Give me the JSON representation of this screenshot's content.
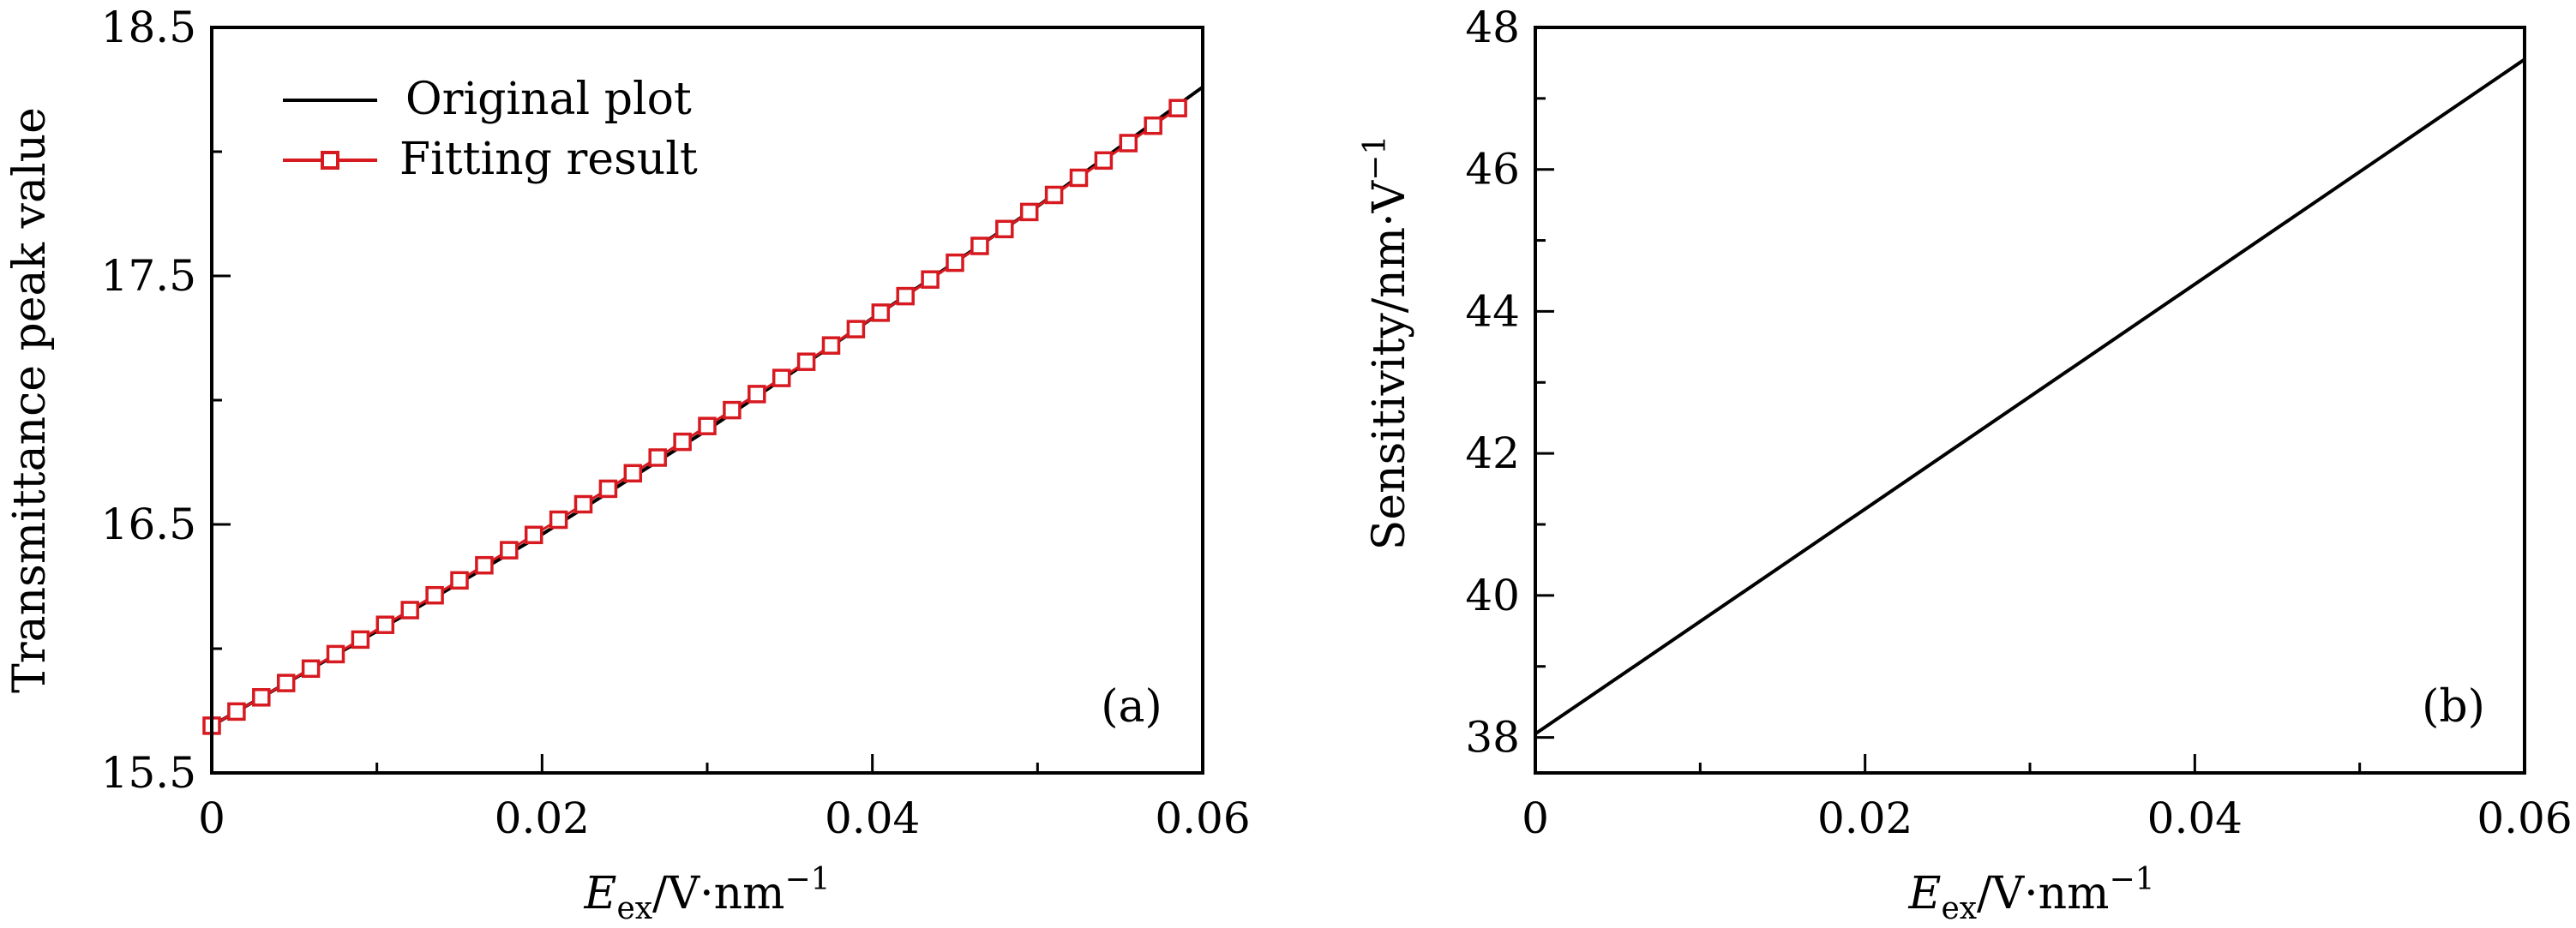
{
  "chart_data": [
    {
      "panel": "(a)",
      "type": "line",
      "title": "",
      "xlabel": "E_ex/V·nm^−1",
      "xlabel_main": "E",
      "xlabel_sub": "ex",
      "xlabel_unit": "/V·nm",
      "xlabel_sup": "−1",
      "ylabel": "Transmittance peak value",
      "xlim": [
        0,
        0.06
      ],
      "ylim": [
        15.5,
        18.5
      ],
      "xticks": [
        0,
        0.02,
        0.04,
        0.06
      ],
      "xtick_labels": [
        "0",
        "0.02",
        "0.04",
        "0.06"
      ],
      "yticks": [
        15.5,
        16.5,
        17.5,
        18.5
      ],
      "ytick_labels": [
        "15.5",
        "16.5",
        "17.5",
        "18.5"
      ],
      "legend_position": "top-left",
      "series": [
        {
          "name": "Original plot",
          "style": "line",
          "color": "#000000",
          "x": [
            0,
            0.01,
            0.02,
            0.03,
            0.04,
            0.05,
            0.06
          ],
          "y": [
            15.69,
            16.07,
            16.46,
            16.88,
            17.33,
            17.78,
            18.26
          ]
        },
        {
          "name": "Fitting result",
          "style": "line-square-markers",
          "color": "#d71920",
          "x_start": 0,
          "x_step": 0.0015,
          "count": 40,
          "a": 15.69,
          "b": 37.8,
          "c": 80.0
        }
      ]
    },
    {
      "panel": "(b)",
      "type": "line",
      "title": "",
      "xlabel": "E_ex/V·nm^−1",
      "xlabel_main": "E",
      "xlabel_sub": "ex",
      "xlabel_unit": "/V·nm",
      "xlabel_sup": "−1",
      "ylabel": "Sensitivity/nm·V^−1",
      "ylabel_main": "Sensitivity/nm·V",
      "ylabel_sup": "−1",
      "xlim": [
        0,
        0.06
      ],
      "ylim": [
        37.5,
        48
      ],
      "xticks": [
        0,
        0.02,
        0.04,
        0.06
      ],
      "xtick_labels": [
        "0",
        "0.02",
        "0.04",
        "0.06"
      ],
      "yticks": [
        38,
        40,
        42,
        44,
        46,
        48
      ],
      "ytick_labels": [
        "38",
        "40",
        "42",
        "44",
        "46",
        "48"
      ],
      "series": [
        {
          "name": "Sensitivity",
          "style": "line",
          "color": "#000000",
          "x": [
            0,
            0.06
          ],
          "y": [
            38.05,
            47.55
          ]
        }
      ]
    }
  ]
}
